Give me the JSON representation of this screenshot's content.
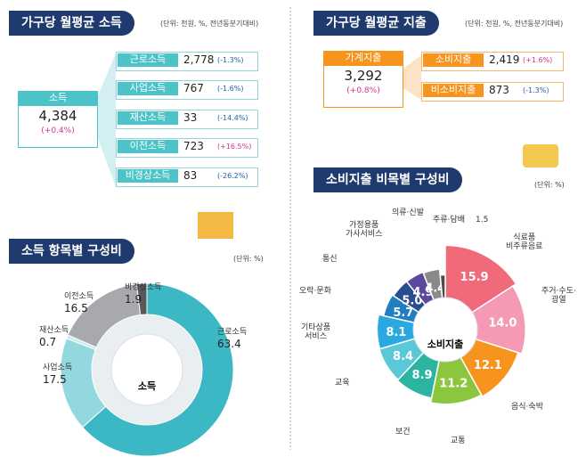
{
  "income": {
    "title": "가구당 월평균 소득",
    "unit": "(단위: 천원, %, 전년동분기대비)",
    "total": {
      "label": "소득",
      "value": "4,384",
      "change": "(+0.4%)"
    },
    "items": [
      {
        "label": "근로소득",
        "value": "2,778",
        "change": "(-1.3%)"
      },
      {
        "label": "사업소득",
        "value": "767",
        "change": "(-1.6%)"
      },
      {
        "label": "재산소득",
        "value": "33",
        "change": "(-14.4%)"
      },
      {
        "label": "이전소득",
        "value": "723",
        "change": "(+16.5%)"
      },
      {
        "label": "비경상소득",
        "value": "83",
        "change": "(-26.2%)"
      }
    ]
  },
  "spending": {
    "title": "가구당 월평균 지출",
    "unit": "(단위: 천원, %, 전년동분기대비)",
    "total": {
      "label": "가계지출",
      "value": "3,292",
      "change": "(+0.8%)"
    },
    "items": [
      {
        "label": "소비지출",
        "value": "2,419",
        "change": "(+1.6%)"
      },
      {
        "label": "비소비지출",
        "value": "873",
        "change": "(-1.3%)"
      }
    ]
  },
  "chart_data": [
    {
      "type": "donut",
      "title": "소득 항목별 구성비",
      "unit": "(단위: %)",
      "center": "소득",
      "categories": [
        "근로소득",
        "사업소득",
        "재산소득",
        "이전소득",
        "비경상소득"
      ],
      "values": [
        63.4,
        17.5,
        0.7,
        16.5,
        1.9
      ],
      "colors": [
        "#3cb8c4",
        "#93d8de",
        "#c9ecef",
        "#a7a9ac",
        "#58595b"
      ]
    },
    {
      "type": "pie",
      "title": "소비지출 비목별 구성비",
      "unit": "(단위: %)",
      "center": "소비지출",
      "categories": [
        "식료품\n비주류음료",
        "주거·수도·\n광열",
        "음식·숙박",
        "교통",
        "보건",
        "교육",
        "기타상품\n서비스",
        "오락·문화",
        "통신",
        "가정용품\n가사서비스",
        "의류·신발",
        "주류·담배"
      ],
      "values": [
        15.9,
        14.0,
        12.1,
        11.2,
        8.9,
        8.4,
        8.1,
        5.7,
        5.0,
        4.9,
        4.4,
        1.5
      ],
      "value_labels": [
        "15.9",
        "14.0",
        "12.1",
        "11.2",
        "8.9",
        "8.4",
        "8.1",
        "5.7",
        "5.0",
        "4.9",
        "4.4",
        "1.5"
      ],
      "colors": [
        "#f06a7a",
        "#f49ab5",
        "#f7941d",
        "#8cc63f",
        "#2bb5a0",
        "#5bc8d8",
        "#29a9e0",
        "#1f7fc1",
        "#2a4d8f",
        "#5b4a9c",
        "#8a8a8a",
        "#4d4d4d"
      ]
    }
  ]
}
